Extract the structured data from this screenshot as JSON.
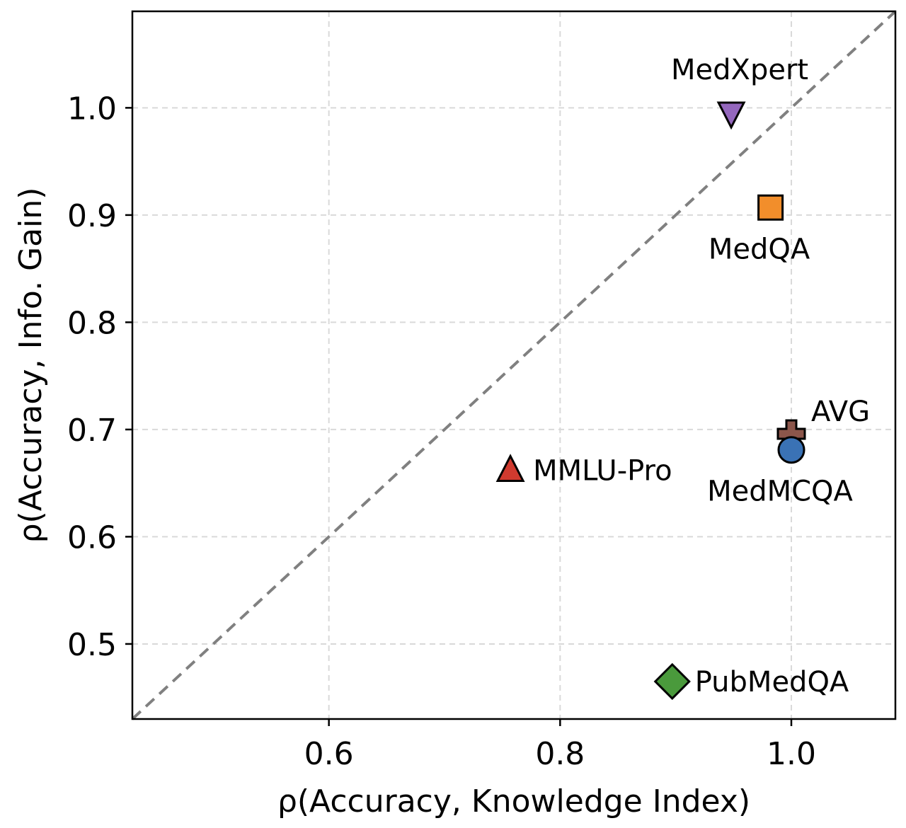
{
  "chart_data": {
    "type": "scatter",
    "xlabel": "ρ(Accuracy, Knowledge Index)",
    "ylabel": "ρ(Accuracy, Info. Gain)",
    "xlim": [
      0.43,
      1.09
    ],
    "ylim": [
      0.43,
      1.09
    ],
    "x_ticks": [
      0.6,
      0.8,
      1.0
    ],
    "y_ticks": [
      0.5,
      0.6,
      0.7,
      0.8,
      0.9,
      1.0
    ],
    "x_tick_labels": [
      "0.6",
      "0.8",
      "1.0"
    ],
    "y_tick_labels": [
      "0.5",
      "0.6",
      "0.7",
      "0.8",
      "0.9",
      "1.0"
    ],
    "grid": true,
    "reference_line": "y = x",
    "points": [
      {
        "label": "MedXpert",
        "x": 0.948,
        "y": 0.995,
        "marker": "triangle-down",
        "color": "#9467bd",
        "label_pos": "above"
      },
      {
        "label": "MedQA",
        "x": 0.982,
        "y": 0.907,
        "marker": "square",
        "color": "#f28e2b",
        "label_pos": "below"
      },
      {
        "label": "AVG",
        "x": 1.0,
        "y": 0.696,
        "marker": "plus",
        "color": "#8c564b",
        "label_pos": "upper-right"
      },
      {
        "label": "MedMCQA",
        "x": 1.0,
        "y": 0.681,
        "marker": "circle",
        "color": "#3a72b5",
        "label_pos": "below"
      },
      {
        "label": "MMLU-Pro",
        "x": 0.757,
        "y": 0.662,
        "marker": "triangle-up",
        "color": "#d03a2f",
        "label_pos": "right"
      },
      {
        "label": "PubMedQA",
        "x": 0.897,
        "y": 0.465,
        "marker": "diamond",
        "color": "#4a9a3c",
        "label_pos": "right"
      }
    ]
  }
}
